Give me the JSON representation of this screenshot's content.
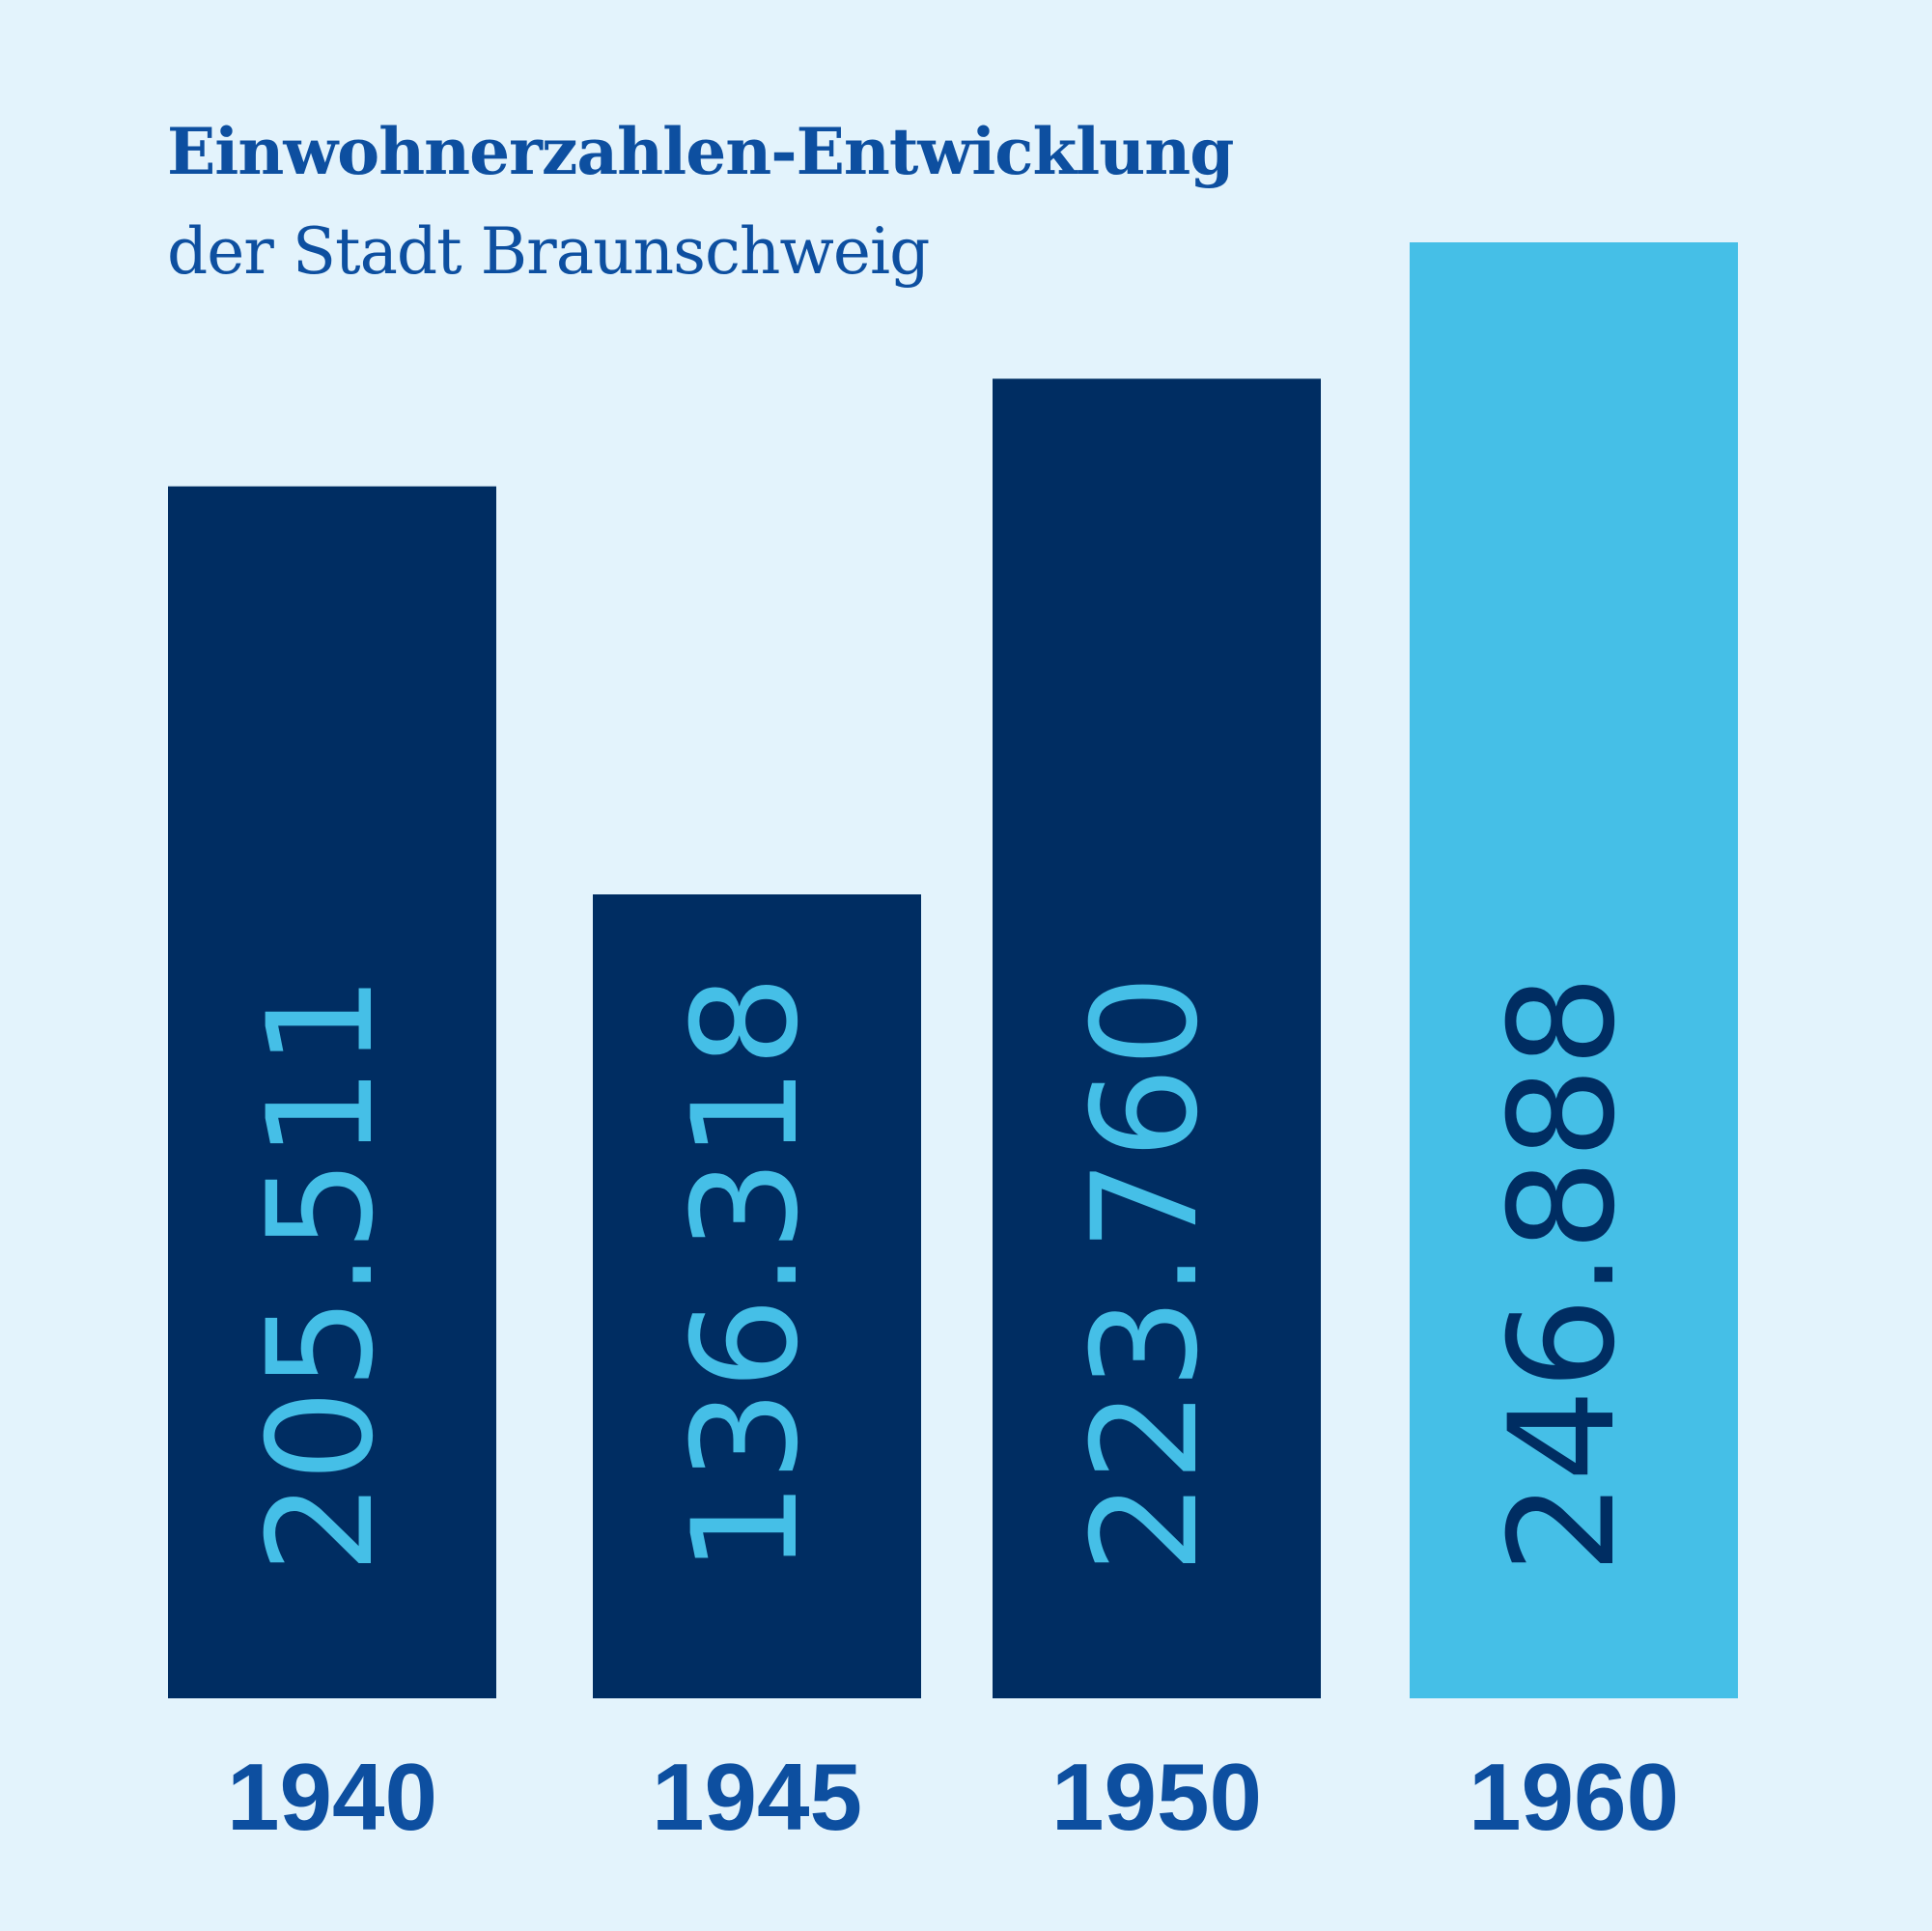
{
  "chart_data": {
    "type": "bar",
    "title": "Einwohnerzahlen-Entwicklung",
    "subtitle": "der Stadt Braunschweig",
    "categories": [
      "1940",
      "1945",
      "1950",
      "1960"
    ],
    "values": [
      205511,
      136318,
      223760,
      246888
    ],
    "value_labels": [
      "205.511",
      "136.318",
      "223.760",
      "246.888"
    ],
    "xlabel": "",
    "ylabel": "",
    "colors": {
      "background": "#e3f3fc",
      "bar_dark": "#002d62",
      "bar_light": "#45bfe7",
      "label_on_dark": "#45bfe7",
      "label_on_light": "#002d62",
      "text": "#0d4fa0"
    },
    "highlight_index": 3,
    "grid": false,
    "legend": "none"
  }
}
